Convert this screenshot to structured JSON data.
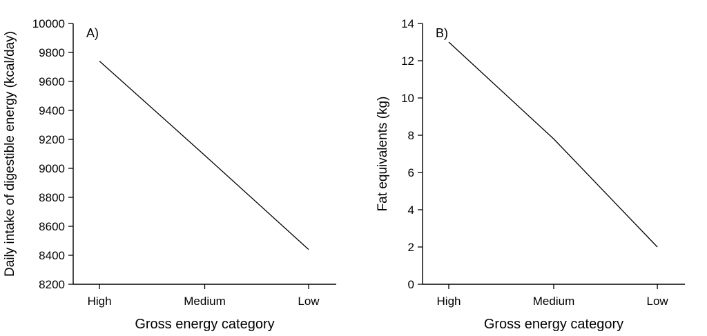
{
  "figure": {
    "background": "#ffffff",
    "line_color": "#000000",
    "text_color": "#000000"
  },
  "chart_data": [
    {
      "type": "line",
      "panel_label": "A)",
      "categories": [
        "High",
        "Medium",
        "Low"
      ],
      "values": [
        9740,
        9090,
        8440
      ],
      "xlabel": "Gross energy category",
      "ylabel": "Daily intake of digestible energy (kcal/day)",
      "ylim": [
        8200,
        10000
      ],
      "ytick_step": 200,
      "yticks": [
        8200,
        8400,
        8600,
        8800,
        9000,
        9200,
        9400,
        9600,
        9800,
        10000
      ],
      "grid": false,
      "legend": "none"
    },
    {
      "type": "line",
      "panel_label": "B)",
      "categories": [
        "High",
        "Medium",
        "Low"
      ],
      "values": [
        13.0,
        7.8,
        2.0
      ],
      "xlabel": "Gross energy category",
      "ylabel": "Fat equivalents (kg)",
      "ylim": [
        0,
        14
      ],
      "ytick_step": 2,
      "yticks": [
        0,
        2,
        4,
        6,
        8,
        10,
        12,
        14
      ],
      "grid": false,
      "legend": "none"
    }
  ]
}
